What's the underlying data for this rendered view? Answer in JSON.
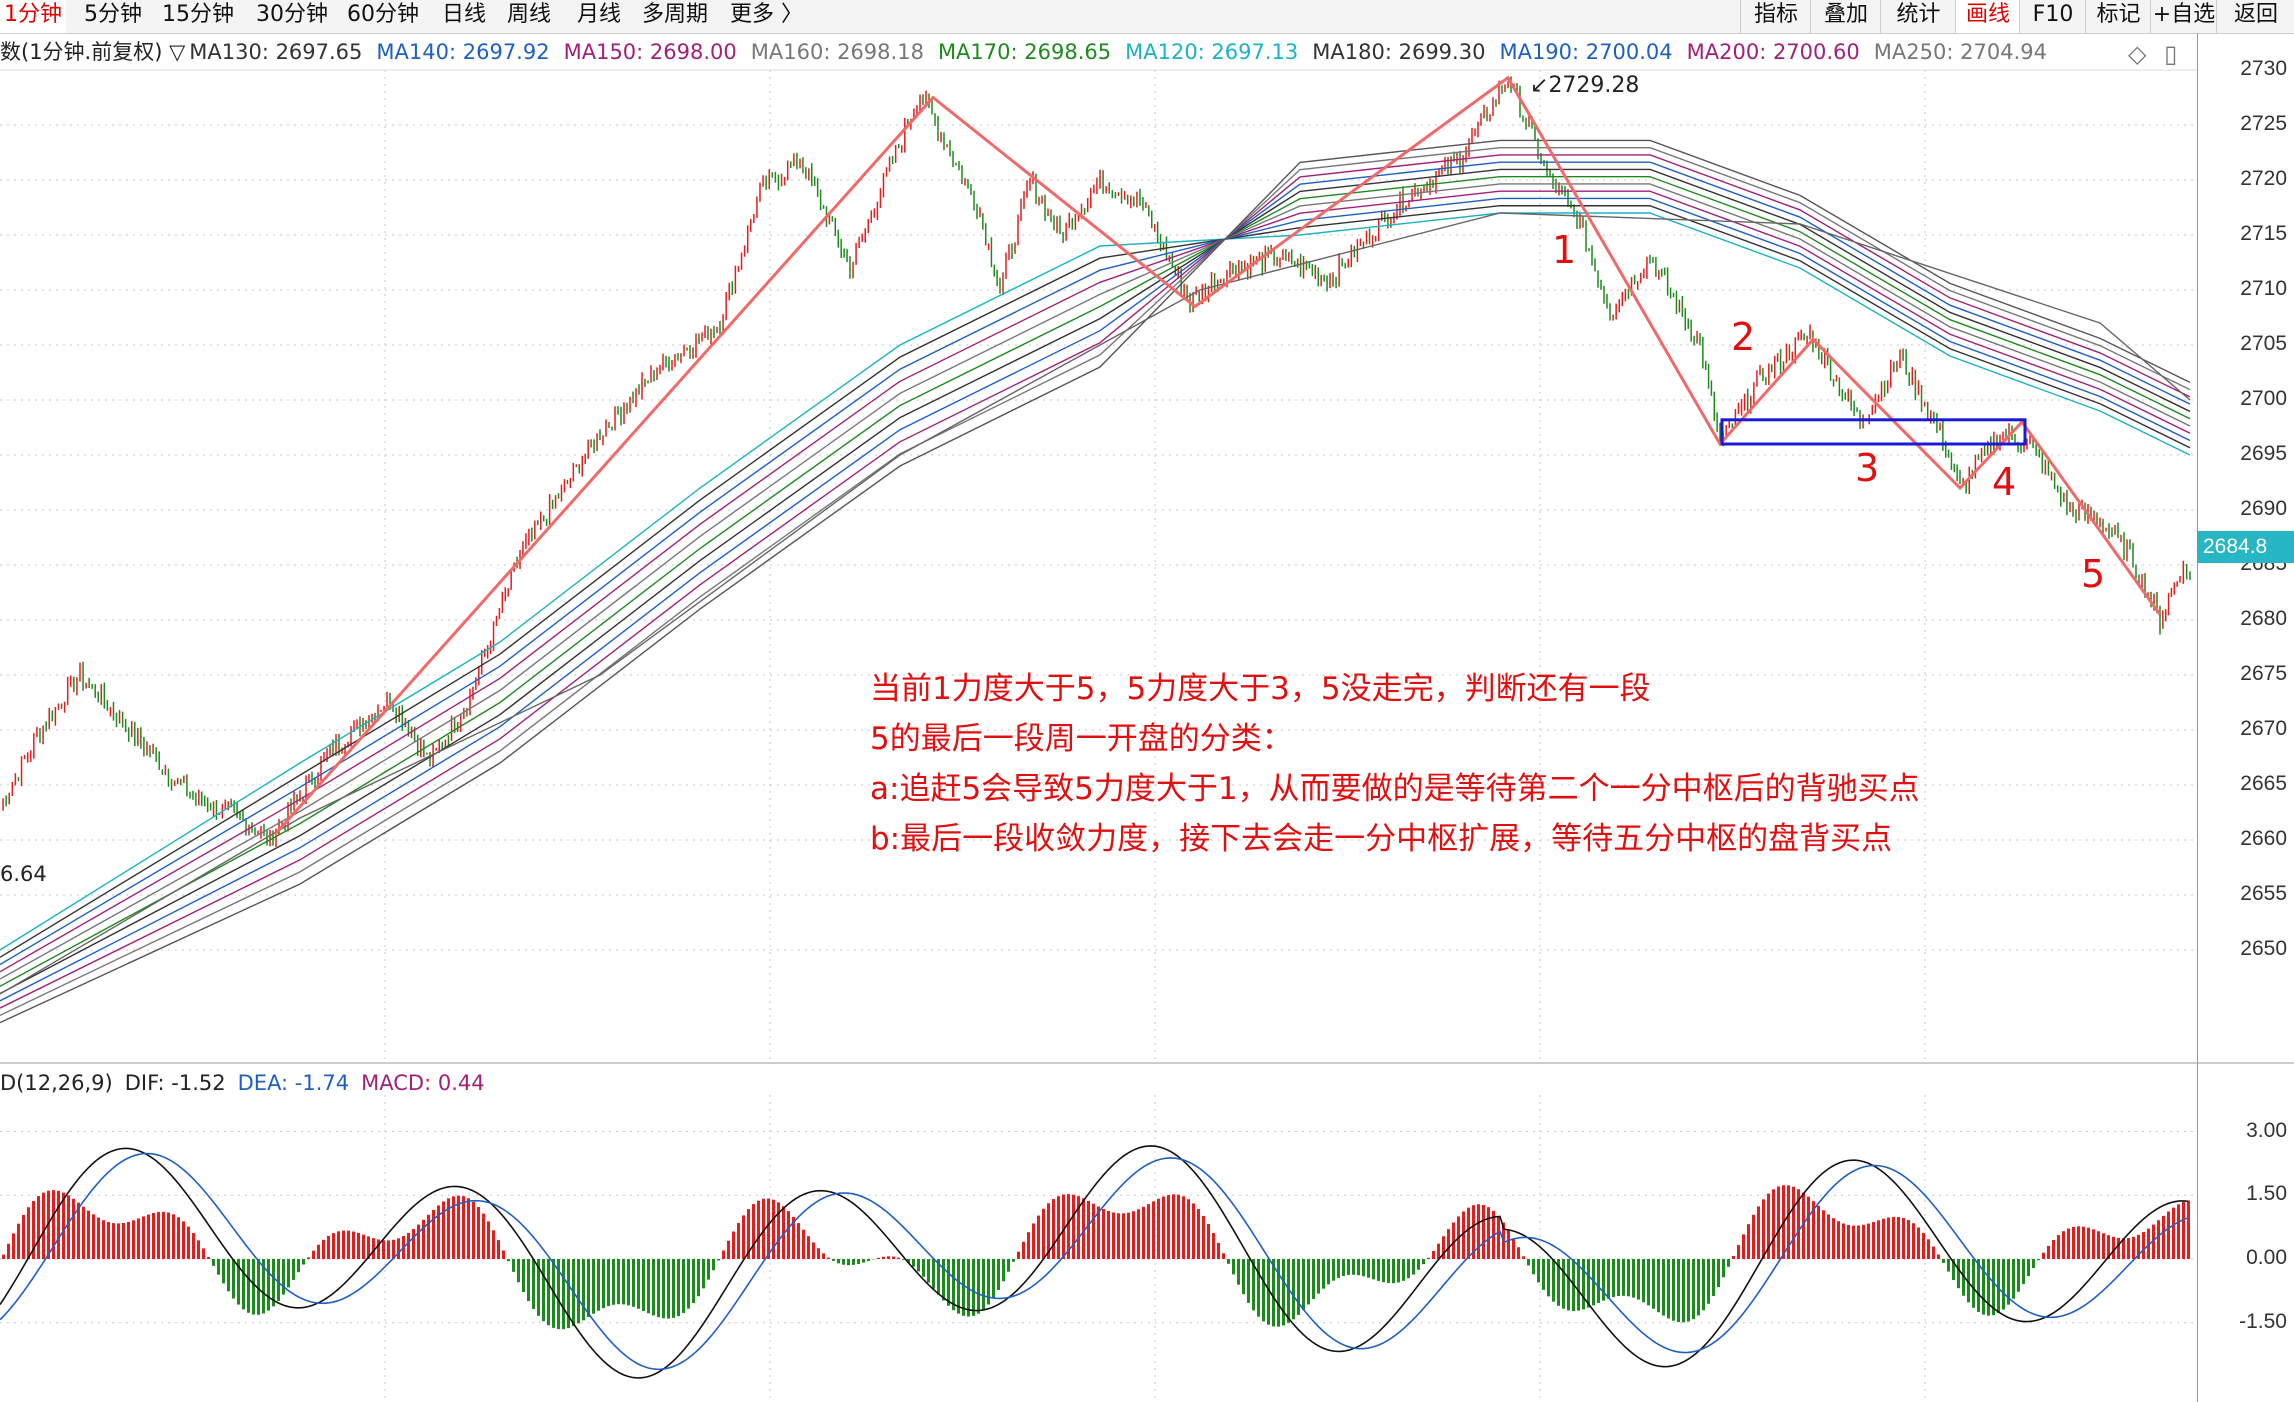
{
  "toolbar": {
    "periods": [
      "1分钟",
      "5分钟",
      "15分钟",
      "30分钟",
      "60分钟",
      "日线",
      "周线",
      "月线",
      "多周期",
      "更多 〉"
    ],
    "active_period": "1分钟",
    "tools": [
      "指标",
      "叠加",
      "统计",
      "画线",
      "F10",
      "标记",
      "+自选",
      "返回"
    ],
    "active_tool": "画线"
  },
  "legend": {
    "prefix": "数(1分钟.前复权) ▽",
    "items": [
      {
        "label": "MA130: 2697.65",
        "color": "#333333"
      },
      {
        "label": "MA140: 2697.92",
        "color": "#1e5fc2"
      },
      {
        "label": "MA150: 2698.00",
        "color": "#a0207a"
      },
      {
        "label": "MA160: 2698.18",
        "color": "#777777"
      },
      {
        "label": "MA170: 2698.65",
        "color": "#1e8a1e"
      },
      {
        "label": "MA120: 2697.13",
        "color": "#19b3c3"
      },
      {
        "label": "MA180: 2699.30",
        "color": "#333333"
      },
      {
        "label": "MA190: 2700.04",
        "color": "#1e5fc2"
      },
      {
        "label": "MA200: 2700.60",
        "color": "#a0207a"
      },
      {
        "label": "MA250: 2704.94",
        "color": "#777777"
      }
    ],
    "icons": [
      "diamond-icon",
      "window-icon"
    ]
  },
  "price_axis": {
    "ticks": [
      "2730",
      "2725",
      "2720",
      "2715",
      "2710",
      "2705",
      "2700",
      "2695",
      "2690",
      "2685",
      "2680",
      "2675",
      "2670",
      "2665",
      "2660",
      "2655",
      "2650"
    ],
    "current_price": "2684.8"
  },
  "chart_labels": {
    "high_label": "2729.28",
    "left_value": "6.64"
  },
  "segment_labels": [
    "1",
    "2",
    "3",
    "4",
    "5"
  ],
  "annotation": [
    "当前1力度大于5，5力度大于3，5没走完，判断还有一段",
    "5的最后一段周一开盘的分类：",
    "a:追赶5会导致5力度大于1，从而要做的是等待第二个一分中枢后的背驰买点",
    "b:最后一段收敛力度，接下去会走一分中枢扩展，等待五分中枢的盘背买点"
  ],
  "macd": {
    "header": [
      {
        "label": "D(12,26,9)",
        "color": "#222222"
      },
      {
        "label": "DIF: -1.52",
        "color": "#222222"
      },
      {
        "label": "DEA: -1.74",
        "color": "#1e5fc2"
      },
      {
        "label": "MACD: 0.44",
        "color": "#a0207a"
      }
    ],
    "ticks": [
      "3.00",
      "1.50",
      "0.00",
      "-1.50"
    ]
  },
  "chart_data": {
    "type": "line",
    "title": "",
    "y_range": [
      2645,
      2732
    ],
    "wave_segments": [
      {
        "from": "start",
        "to": "2729.28"
      },
      {
        "label": "1"
      },
      {
        "label": "2"
      },
      {
        "label": "3"
      },
      {
        "label": "4"
      },
      {
        "label": "5"
      }
    ],
    "hub_box": {
      "low": 2696.0,
      "high": 2698.2
    },
    "close_end": 2684.8,
    "high": 2729.28
  }
}
